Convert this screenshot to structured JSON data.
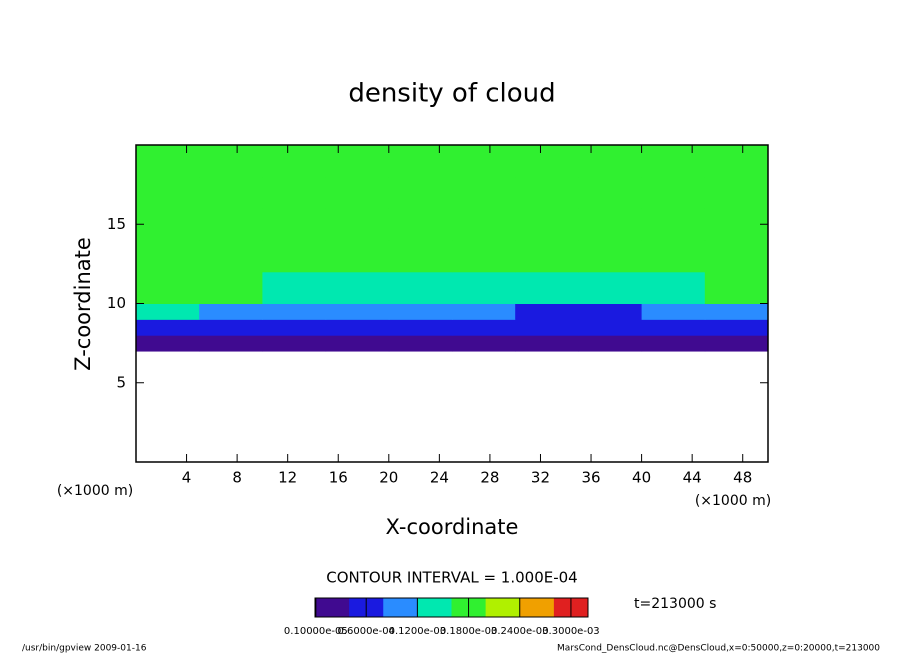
{
  "chart_data": {
    "type": "heatmap",
    "title": "density of cloud",
    "xlabel": "X-coordinate",
    "ylabel": "Z-coordinate",
    "axis_unit": "(×1000 m)",
    "xlim": [
      0,
      50
    ],
    "ylim": [
      0,
      20
    ],
    "xticks": [
      4,
      8,
      12,
      16,
      20,
      24,
      28,
      32,
      36,
      40,
      44,
      48
    ],
    "yticks": [
      5,
      10,
      15
    ],
    "x_edges": [
      0,
      5,
      10,
      15,
      20,
      25,
      30,
      35,
      40,
      45,
      50
    ],
    "z_edges": [
      7,
      8,
      9,
      10,
      12,
      14,
      16,
      18,
      20
    ],
    "values": [
      [
        2e-05,
        2e-05,
        1e-05,
        2e-05,
        3e-05,
        2e-05,
        1e-05,
        1e-05,
        2e-05,
        2e-05
      ],
      [
        6e-05,
        5e-05,
        5e-05,
        6e-05,
        6e-05,
        5e-05,
        4e-05,
        4e-05,
        5e-05,
        5e-05
      ],
      [
        0.00012,
        0.0001,
        8e-05,
        9e-05,
        9e-05,
        8e-05,
        7e-05,
        7e-05,
        8e-05,
        9e-05
      ],
      [
        0.00017,
        0.00016,
        0.00013,
        0.00014,
        0.00015,
        0.00015,
        0.00015,
        0.00014,
        0.00015,
        0.00016
      ],
      [
        0.00018,
        0.00018,
        0.00017,
        0.00017,
        0.00018,
        0.00017,
        0.00017,
        0.00018,
        0.00018,
        0.00018
      ],
      [
        0.00018,
        0.00018,
        0.00018,
        0.00018,
        0.00018,
        0.00018,
        0.00018,
        0.00018,
        0.00018,
        0.00018
      ],
      [
        0.00018,
        0.00019,
        0.00019,
        0.00019,
        0.00019,
        0.00019,
        0.00019,
        0.00019,
        0.00019,
        0.00018
      ],
      [
        0.00019,
        0.00019,
        0.00019,
        0.00019,
        0.00019,
        0.00019,
        0.00019,
        0.00019,
        0.00019,
        0.00019
      ]
    ],
    "colorbar": {
      "clim": [
        0,
        0.00032
      ],
      "colors": [
        "#400a90",
        "#1a1ae0",
        "#2a8cff",
        "#00e8b0",
        "#30f030",
        "#b0f000",
        "#f0a000",
        "#e02020"
      ],
      "ticks": [
        {
          "value": 1e-06,
          "label": "0.10000e-05"
        },
        {
          "value": 6e-05,
          "label": "0.6000e-04"
        },
        {
          "value": 0.00012,
          "label": "0.1200e-03"
        },
        {
          "value": 0.00018,
          "label": "0.1800e-03"
        },
        {
          "value": 0.00024,
          "label": "0.2400e-03"
        },
        {
          "value": 0.0003,
          "label": "0.3000e-03"
        }
      ]
    },
    "contour_interval": "CONTOUR INTERVAL = 1.000E-04",
    "time_label": "t=213000 s",
    "footer_left": "/usr/bin/gpview   2009-01-16",
    "footer_right": "MarsCond_DensCloud.nc@DensCloud,x=0:50000,z=0:20000,t=213000"
  }
}
